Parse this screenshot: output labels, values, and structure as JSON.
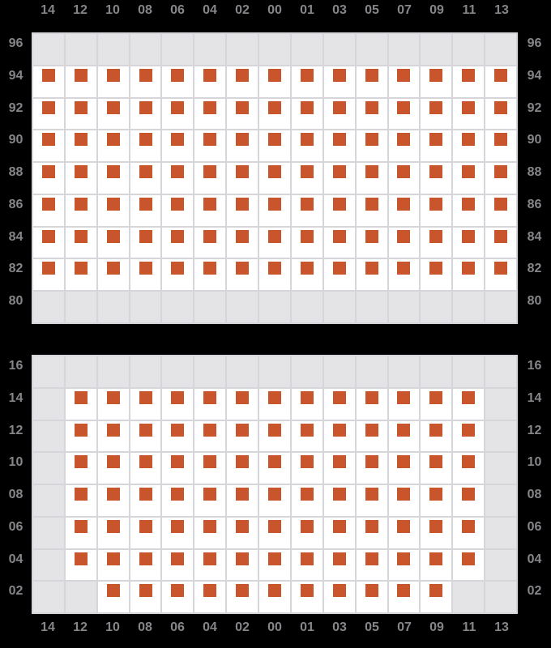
{
  "colors": {
    "background": "#000000",
    "cell": "#ffffff",
    "cell_disabled": "#e4e4e7",
    "grid_line": "#d6d6da",
    "marker": "#c8552b",
    "label_text": "#85858a"
  },
  "cell_states": {
    "M": "marked",
    "D": "disabled"
  },
  "columns": [
    "14",
    "12",
    "10",
    "08",
    "06",
    "04",
    "02",
    "00",
    "01",
    "03",
    "05",
    "07",
    "09",
    "11",
    "13"
  ],
  "panels": [
    {
      "name": "upper-grid",
      "rows": [
        {
          "label": "96",
          "cells": "DDDDDDDDDDDDDDD"
        },
        {
          "label": "94",
          "cells": "MMMMMMMMMMMMMMM"
        },
        {
          "label": "92",
          "cells": "MMMMMMMMMMMMMMM"
        },
        {
          "label": "90",
          "cells": "MMMMMMMMMMMMMMM"
        },
        {
          "label": "88",
          "cells": "MMMMMMMMMMMMMMM"
        },
        {
          "label": "86",
          "cells": "MMMMMMMMMMMMMMM"
        },
        {
          "label": "84",
          "cells": "MMMMMMMMMMMMMMM"
        },
        {
          "label": "82",
          "cells": "MMMMMMMMMMMMMMM"
        },
        {
          "label": "80",
          "cells": "DDDDDDDDDDDDDDD"
        }
      ]
    },
    {
      "name": "lower-grid",
      "rows": [
        {
          "label": "16",
          "cells": "DDDDDDDDDDDDDDD"
        },
        {
          "label": "14",
          "cells": "DMMMMMMMMMMMMMD"
        },
        {
          "label": "12",
          "cells": "DMMMMMMMMMMMMMD"
        },
        {
          "label": "10",
          "cells": "DMMMMMMMMMMMMMD"
        },
        {
          "label": "08",
          "cells": "DMMMMMMMMMMMMMD"
        },
        {
          "label": "06",
          "cells": "DMMMMMMMMMMMMMD"
        },
        {
          "label": "04",
          "cells": "DMMMMMMMMMMMMMD"
        },
        {
          "label": "02",
          "cells": "DDMMMMMMMMMMMDD"
        }
      ]
    }
  ]
}
